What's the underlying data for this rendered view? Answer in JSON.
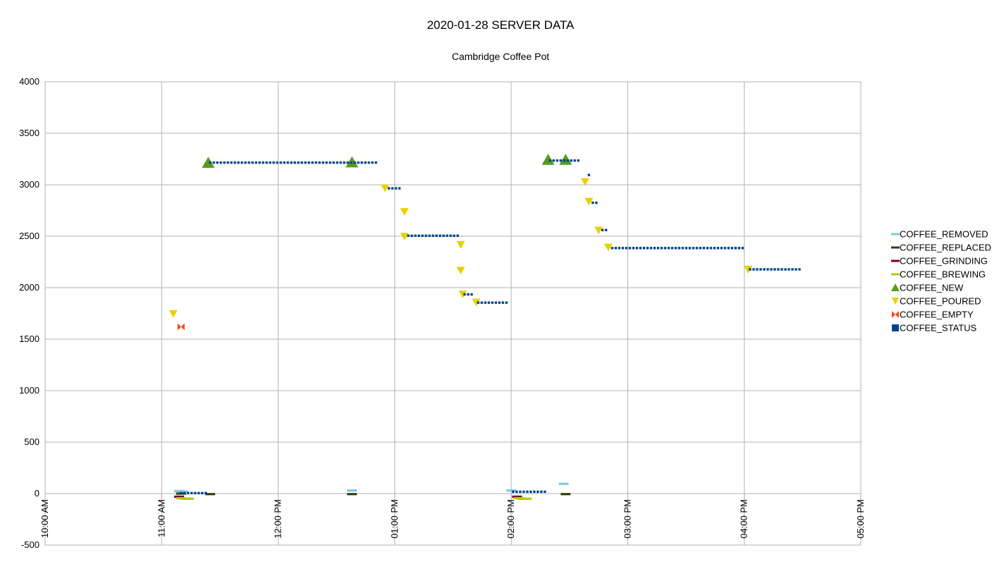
{
  "chart_data": {
    "type": "scatter",
    "title": "2020-01-28 SERVER DATA",
    "subtitle": "Cambridge Coffee Pot",
    "xlabel": "",
    "ylabel": "",
    "xlim": [
      "10:00",
      "17:00"
    ],
    "ylim": [
      -500,
      4000
    ],
    "y_ticks": [
      4000,
      3500,
      3000,
      2500,
      2000,
      1500,
      1000,
      500,
      0,
      -500
    ],
    "x_ticks": [
      {
        "t": "10:00",
        "label": "10:00 AM"
      },
      {
        "t": "11:00",
        "label": "11:00 AM"
      },
      {
        "t": "12:00",
        "label": "12:00 PM"
      },
      {
        "t": "13:00",
        "label": "01:00 PM"
      },
      {
        "t": "14:00",
        "label": "02:00 PM"
      },
      {
        "t": "15:00",
        "label": "03:00 PM"
      },
      {
        "t": "16:00",
        "label": "04:00 PM"
      },
      {
        "t": "17:00",
        "label": "05:00 PM"
      }
    ],
    "grid": true,
    "legend": "right",
    "series": [
      {
        "name": "COFFEE_REMOVED",
        "marker": "dash",
        "color": "#7ec8e3",
        "points": [
          [
            "11:09",
            25
          ],
          [
            "11:11",
            20
          ],
          [
            "12:38",
            30
          ],
          [
            "14:00",
            30
          ],
          [
            "14:27",
            95
          ]
        ]
      },
      {
        "name": "COFFEE_REPLACED",
        "marker": "dash",
        "color": "#314004",
        "points": [
          [
            "11:10",
            0
          ],
          [
            "11:25",
            -5
          ],
          [
            "12:38",
            -5
          ],
          [
            "14:28",
            -5
          ]
        ]
      },
      {
        "name": "COFFEE_GRINDING",
        "marker": "dash",
        "color": "#7e0021",
        "points": [
          [
            "11:09",
            -30
          ],
          [
            "14:03",
            -30
          ]
        ]
      },
      {
        "name": "COFFEE_BREWING",
        "marker": "dash",
        "color": "#aecf00",
        "points": [
          [
            "11:10",
            -45
          ],
          [
            "11:12",
            -50
          ],
          [
            "11:14",
            -50
          ],
          [
            "14:04",
            -45
          ],
          [
            "14:06",
            -50
          ],
          [
            "14:08",
            -50
          ]
        ]
      },
      {
        "name": "COFFEE_NEW",
        "marker": "triangle-up",
        "color": "#579d1c",
        "points": [
          [
            "11:24",
            3210
          ],
          [
            "12:38",
            3215
          ],
          [
            "14:19",
            3240
          ],
          [
            "14:28",
            3240
          ]
        ]
      },
      {
        "name": "COFFEE_POURED",
        "marker": "triangle-down",
        "color": "#e6d200",
        "points": [
          [
            "11:06",
            1750
          ],
          [
            "12:55",
            2970
          ],
          [
            "13:05",
            2740
          ],
          [
            "13:05",
            2500
          ],
          [
            "13:34",
            2420
          ],
          [
            "13:34",
            2170
          ],
          [
            "13:35",
            1940
          ],
          [
            "13:42",
            1860
          ],
          [
            "14:38",
            3030
          ],
          [
            "14:40",
            2840
          ],
          [
            "14:45",
            2560
          ],
          [
            "14:50",
            2395
          ],
          [
            "16:02",
            2180
          ]
        ]
      },
      {
        "name": "COFFEE_EMPTY",
        "marker": "bowtie",
        "color": "#ff420e",
        "points": [
          [
            "11:10",
            1620
          ]
        ]
      },
      {
        "name": "COFFEE_STATUS",
        "marker": "square",
        "color": "#004586",
        "segments": [
          {
            "from": "11:10",
            "to": "11:24",
            "y": 5
          },
          {
            "from": "11:25",
            "to": "12:52",
            "y": 3215
          },
          {
            "from": "12:57",
            "to": "13:03",
            "y": 2965
          },
          {
            "from": "13:07",
            "to": "13:33",
            "y": 2505
          },
          {
            "from": "13:36",
            "to": "13:41",
            "y": 1935
          },
          {
            "from": "13:43",
            "to": "13:59",
            "y": 1855
          },
          {
            "from": "14:01",
            "to": "14:18",
            "y": 18
          },
          {
            "from": "14:20",
            "to": "14:36",
            "y": 3235
          },
          {
            "from": "14:40",
            "to": "14:40",
            "y": 3095
          },
          {
            "from": "14:42",
            "to": "14:44",
            "y": 2825
          },
          {
            "from": "14:47",
            "to": "14:49",
            "y": 2560
          },
          {
            "from": "14:52",
            "to": "16:00",
            "y": 2385
          },
          {
            "from": "16:03",
            "to": "16:29",
            "y": 2178
          }
        ]
      }
    ]
  },
  "colors": {
    "grid": "#b3b3b3",
    "axis": "#b3b3b3",
    "background": "#ffffff"
  }
}
